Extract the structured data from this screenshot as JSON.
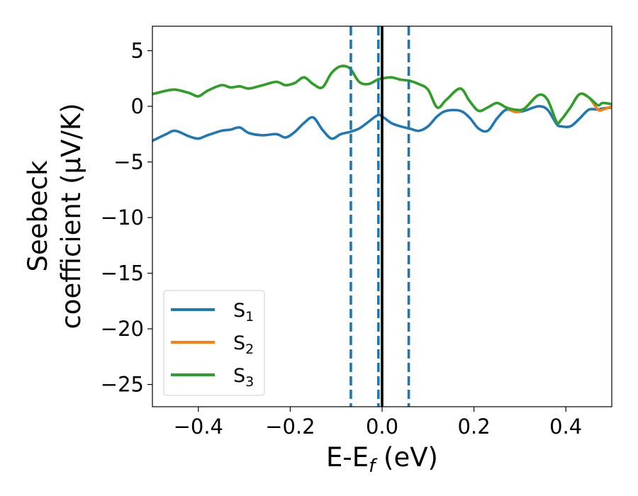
{
  "chart_data": {
    "type": "line",
    "xlabel": "E-E",
    "xlabel_sub": "f",
    "xlabel_unit": " (eV)",
    "ylabel_line1": "Seebeck",
    "ylabel_line2": "coefficient  (μV/K)",
    "xlim": [
      -0.5,
      0.5
    ],
    "ylim": [
      -27,
      7.2
    ],
    "x_ticks": [
      -0.4,
      -0.2,
      0.0,
      0.2,
      0.4
    ],
    "x_tick_labels": [
      "−0.4",
      "−0.2",
      "0.0",
      "0.2",
      "0.4"
    ],
    "y_ticks": [
      5,
      0,
      -5,
      -10,
      -15,
      -20,
      -25
    ],
    "y_tick_labels": [
      "5",
      "0",
      "−5",
      "−10",
      "−15",
      "−20",
      "−25"
    ],
    "grid": false,
    "legend_position": "lower-left",
    "vlines": [
      {
        "x": -0.068,
        "style": "dashed",
        "color": "#1f77b4"
      },
      {
        "x": -0.008,
        "style": "dashed",
        "color": "#1f77b4"
      },
      {
        "x": 0.058,
        "style": "dashed",
        "color": "#1f77b4"
      },
      {
        "x": 0.0,
        "style": "solid",
        "color": "#000000"
      }
    ],
    "x": [
      -0.5,
      -0.47,
      -0.45,
      -0.42,
      -0.4,
      -0.38,
      -0.35,
      -0.33,
      -0.31,
      -0.29,
      -0.26,
      -0.23,
      -0.21,
      -0.19,
      -0.17,
      -0.15,
      -0.13,
      -0.11,
      -0.09,
      -0.07,
      -0.05,
      -0.03,
      -0.01,
      0.0,
      0.02,
      0.04,
      0.06,
      0.08,
      0.1,
      0.12,
      0.14,
      0.17,
      0.19,
      0.21,
      0.23,
      0.25,
      0.27,
      0.29,
      0.31,
      0.34,
      0.36,
      0.38,
      0.39,
      0.41,
      0.43,
      0.45,
      0.47,
      0.48,
      0.5
    ],
    "series": [
      {
        "name": "S",
        "name_sub": "1",
        "color": "#1f77b4",
        "values": [
          -3.1,
          -2.5,
          -2.2,
          -2.7,
          -2.9,
          -2.6,
          -2.2,
          -2.1,
          -1.9,
          -2.4,
          -2.6,
          -2.5,
          -2.8,
          -2.3,
          -1.5,
          -1.0,
          -2.1,
          -2.9,
          -2.5,
          -2.3,
          -2.0,
          -1.4,
          -0.8,
          -0.9,
          -1.5,
          -1.8,
          -2.0,
          -2.2,
          -1.8,
          -0.9,
          -0.4,
          -0.4,
          -1.0,
          -2.0,
          -2.2,
          -1.1,
          -0.3,
          -0.5,
          -0.4,
          0.0,
          -0.3,
          -1.6,
          -1.8,
          -1.8,
          -1.1,
          -0.3,
          -0.3,
          -0.2,
          -0.1
        ]
      },
      {
        "name": "S",
        "name_sub": "2",
        "color": "#ff7f0e",
        "values": [
          1.1,
          1.4,
          1.5,
          1.2,
          0.9,
          1.4,
          1.9,
          1.7,
          1.8,
          1.6,
          1.9,
          2.2,
          1.9,
          2.1,
          2.6,
          2.0,
          1.7,
          3.0,
          3.6,
          3.4,
          2.2,
          2.0,
          2.4,
          2.5,
          2.6,
          2.4,
          2.3,
          2.0,
          1.5,
          -0.1,
          0.6,
          1.6,
          0.5,
          -0.4,
          -0.1,
          0.3,
          -0.1,
          -0.5,
          -0.2,
          1.0,
          0.6,
          -1.4,
          -1.2,
          -0.1,
          1.1,
          0.8,
          -0.3,
          -0.3,
          0.0
        ]
      },
      {
        "name": "S",
        "name_sub": "3",
        "color": "#2ca02c",
        "values": [
          1.1,
          1.4,
          1.5,
          1.2,
          0.9,
          1.4,
          1.9,
          1.7,
          1.8,
          1.6,
          1.9,
          2.2,
          1.9,
          2.1,
          2.6,
          2.0,
          1.7,
          3.0,
          3.6,
          3.4,
          2.2,
          2.0,
          2.4,
          2.5,
          2.6,
          2.4,
          2.3,
          2.0,
          1.5,
          -0.1,
          0.6,
          1.6,
          0.5,
          -0.4,
          -0.1,
          0.3,
          -0.1,
          -0.3,
          -0.2,
          1.0,
          0.6,
          -1.4,
          -1.2,
          -0.1,
          1.1,
          0.8,
          0.1,
          0.3,
          0.2
        ]
      }
    ]
  }
}
